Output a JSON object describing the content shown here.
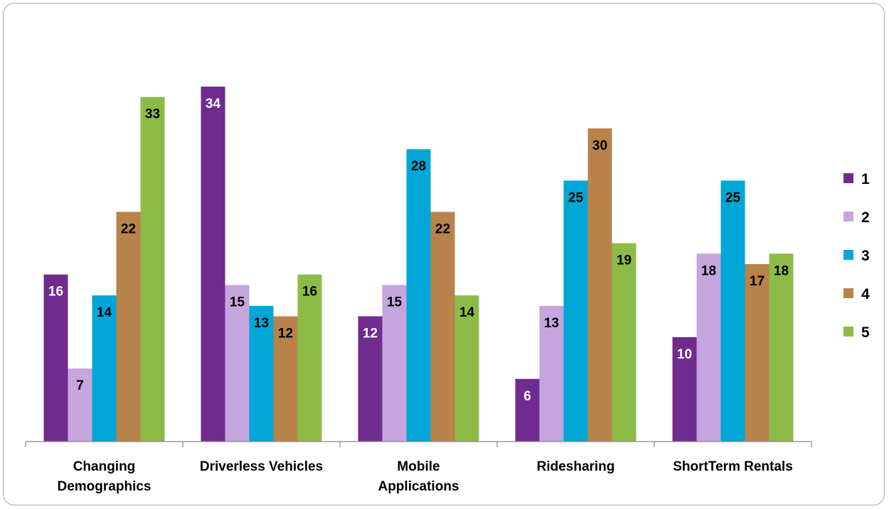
{
  "chart_data": {
    "type": "bar",
    "categories": [
      [
        "Changing",
        "Demographics"
      ],
      [
        "Driverless Vehicles"
      ],
      [
        "Mobile",
        "Applications"
      ],
      [
        "Ridesharing"
      ],
      [
        "ShortTerm Rentals"
      ]
    ],
    "series": [
      {
        "name": "1",
        "color": "#702b8e",
        "label_color": "#ffffff",
        "values": [
          16,
          34,
          12,
          6,
          10
        ]
      },
      {
        "name": "2",
        "color": "#c5a5dd",
        "label_color": "#000000",
        "values": [
          7,
          15,
          15,
          13,
          18
        ]
      },
      {
        "name": "3",
        "color": "#00a6d6",
        "label_color": "#000000",
        "values": [
          14,
          13,
          28,
          25,
          25
        ]
      },
      {
        "name": "4",
        "color": "#b8834b",
        "label_color": "#000000",
        "values": [
          22,
          12,
          22,
          30,
          17
        ]
      },
      {
        "name": "5",
        "color": "#8dbb48",
        "label_color": "#000000",
        "values": [
          33,
          16,
          14,
          19,
          18
        ]
      }
    ],
    "ylim": [
      0,
      34
    ],
    "grid": false,
    "legend_position": "right",
    "data_labels": true,
    "title": "",
    "xlabel": "",
    "ylabel": ""
  }
}
